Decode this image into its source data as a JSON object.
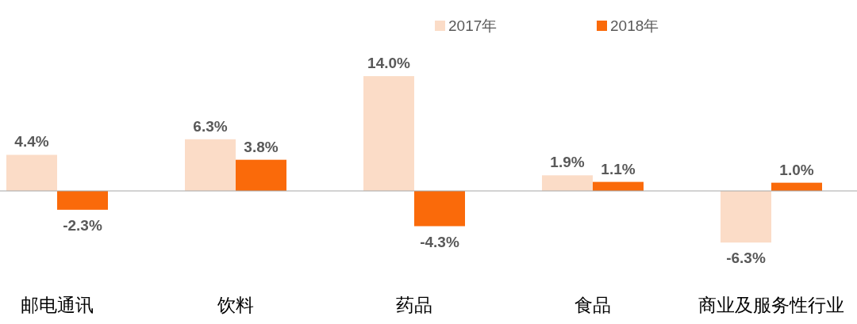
{
  "chart_data": {
    "type": "bar",
    "categories": [
      "邮电通讯",
      "饮料",
      "药品",
      "食品",
      "商业及服务性行业"
    ],
    "series": [
      {
        "name": "2017年",
        "color": "#fbdcc7",
        "values": [
          4.4,
          6.3,
          14.0,
          1.9,
          -6.3
        ],
        "value_labels": [
          "4.4%",
          "6.3%",
          "14.0%",
          "1.9%",
          "-6.3%"
        ]
      },
      {
        "name": "2018年",
        "color": "#fa6a0a",
        "values": [
          -2.3,
          3.8,
          -4.3,
          1.1,
          1.0
        ],
        "value_labels": [
          "-2.3%",
          "3.8%",
          "-4.3%",
          "1.1%",
          "1.0%"
        ]
      }
    ],
    "legend": "top"
  }
}
